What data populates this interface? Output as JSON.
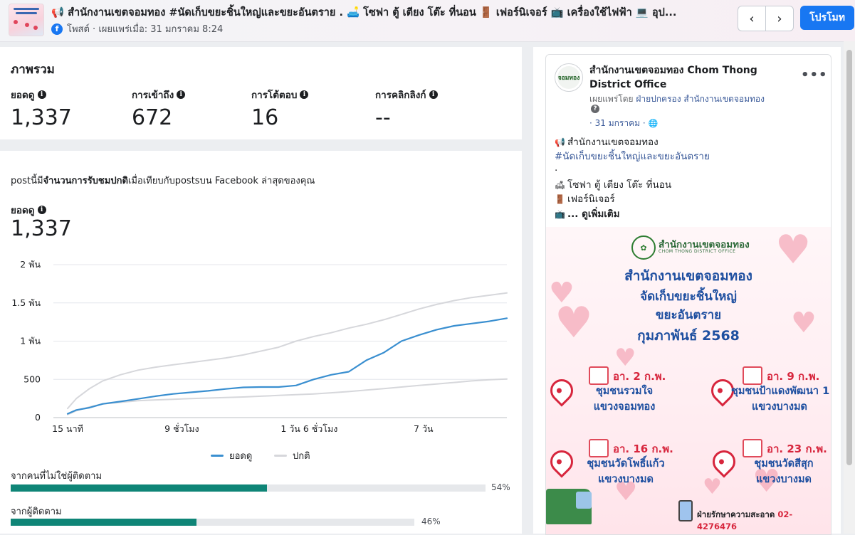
{
  "header": {
    "title": "📢 สำนักงานเขตจอมทอง #นัดเก็บขยะชิ้นใหญ่และขยะอันตราย . 🛋️ โซฟา ตู้ เตียง โต๊ะ ที่นอน 🚪 เฟอร์นิเจอร์ 📺 เครื่องใช้ไฟฟ้า 💻 อุป...",
    "meta": "โพสต์ · เผยแพร่เมื่อ: 31 มกราคม 8:24",
    "prev_icon": "‹",
    "next_icon": "›",
    "promote_label": "โปรโมท"
  },
  "overview": {
    "title": "ภาพรวม",
    "metrics": [
      {
        "label": "ยอดดู",
        "value": "1,337"
      },
      {
        "label": "การเข้าถึง",
        "value": "672"
      },
      {
        "label": "การโต้ตอบ",
        "value": "16"
      },
      {
        "label": "การคลิกลิงก์",
        "value": "--"
      }
    ]
  },
  "performance": {
    "note_prefix": "postนี้มี",
    "note_bold": "จำนวนการรับชมปกติ",
    "note_suffix": "เมื่อเทียบกับpostsบน Facebook ล่าสุดของคุณ",
    "views_label": "ยอดดู",
    "views_value": "1,337",
    "source_nonfollowers_label": "จากคนที่ไม่ใช่ผู้ติดตาม",
    "source_nonfollowers_pct_text": "54%",
    "source_nonfollowers_pct": 54,
    "source_followers_label": "จากผู้ติดตาม",
    "source_followers_pct_text": "46%",
    "source_followers_pct": 46
  },
  "chart_data": {
    "type": "line",
    "x": [
      0,
      0.2,
      0.5,
      0.8,
      1.2,
      1.6,
      2,
      2.4,
      2.8,
      3.2,
      3.6,
      4,
      4.4,
      4.8,
      5.2,
      5.6,
      6,
      6.4,
      6.8,
      7.2,
      7.6,
      8,
      8.4,
      8.8,
      9.2,
      9.6,
      10
    ],
    "xlim": [
      0,
      10
    ],
    "x_ticks": [
      {
        "x": 0,
        "label": "15 นาที"
      },
      {
        "x": 2.6,
        "label": "9 ชั่วโมง"
      },
      {
        "x": 5.5,
        "label": "1 วัน 6 ชั่วโมง"
      },
      {
        "x": 8.1,
        "label": "7 วัน"
      }
    ],
    "y_ticks": [
      {
        "y": 0,
        "label": "0"
      },
      {
        "y": 500,
        "label": "500"
      },
      {
        "y": 1000,
        "label": "1 พัน"
      },
      {
        "y": 1500,
        "label": "1.5 พัน"
      },
      {
        "y": 2000,
        "label": "2 พัน"
      }
    ],
    "ylim": [
      0,
      2000
    ],
    "grid": true,
    "legend_position": "bottom",
    "series": [
      {
        "name": "ยอดดู",
        "color": "#3a8fd0",
        "values": [
          50,
          100,
          130,
          180,
          210,
          245,
          280,
          310,
          330,
          350,
          375,
          395,
          400,
          400,
          420,
          500,
          560,
          600,
          750,
          850,
          1000,
          1080,
          1150,
          1200,
          1230,
          1260,
          1300
        ]
      },
      {
        "name": "ปกติ",
        "color": "#d6d7db",
        "values": [
          120,
          250,
          380,
          480,
          560,
          620,
          660,
          690,
          720,
          750,
          780,
          820,
          870,
          920,
          1000,
          1060,
          1110,
          1170,
          1220,
          1280,
          1350,
          1420,
          1480,
          1530,
          1570,
          1600,
          1630
        ]
      },
      {
        "name": "ปกติ",
        "color": "#d6d7db",
        "values": [
          40,
          90,
          140,
          180,
          200,
          220,
          232,
          240,
          248,
          256,
          262,
          270,
          280,
          290,
          300,
          310,
          325,
          340,
          360,
          380,
          400,
          420,
          440,
          460,
          480,
          495,
          505
        ]
      }
    ]
  },
  "preview": {
    "page_name": "สำนักงานเขตจอมทอง Chom Thong District Office",
    "avatar_text": "จอมทอง",
    "published_by_prefix": "เผยแพร่โดย",
    "published_by": "ฝ่ายปกครอง สำนักงานเขตจอมทอง",
    "question_icon": "?",
    "date": "· 31 มกราคม ·",
    "globe_icon": "🌐",
    "more_icon": "•••",
    "line1": "สำนักงานเขตจอมทอง",
    "line1_icon": "📢",
    "hashtag": "#นัดเก็บขยะชิ้นใหญ่และขยะอันตราย",
    "dot": ".",
    "line3": "โซฟา ตู้ เตียง โต๊ะ ที่นอน",
    "line3_icon": "🛋",
    "line4": "เฟอร์นิเจอร์",
    "line4_icon": "🚪",
    "line5": "... ดูเพิ่มเติม",
    "line5_icon": "📺"
  },
  "poster": {
    "org": "สำนักงานเขตจอมทอง",
    "org_en": "CHOM THONG DISTRICT OFFICE",
    "headline": "สำนักงานเขตจอมทอง",
    "sub1": "จัดเก็บขยะชิ้นใหญ่",
    "sub2": "ขยะอันตราย",
    "month": "กุมภาพันธ์ 2568",
    "events": [
      {
        "date": "อา. 2 ก.พ.",
        "place1": "ชุมชนรวมใจ",
        "place2": "แขวงจอมทอง"
      },
      {
        "date": "อา. 9 ก.พ.",
        "place1": "ชุมชนป้าแดงพัฒนา 1",
        "place2": "แขวงบางมด"
      },
      {
        "date": "อา. 16 ก.พ.",
        "place1": "ชุมชนวัดโพธิ์แก้ว",
        "place2": "แขวงบางมด"
      },
      {
        "date": "อา. 23 ก.พ.",
        "place1": "ชุมชนวัดสีสุก",
        "place2": "แขวงบางมด"
      }
    ],
    "footer_label": "ฝ่ายรักษาความสะอาด",
    "footer_phone": "02-4276476"
  }
}
